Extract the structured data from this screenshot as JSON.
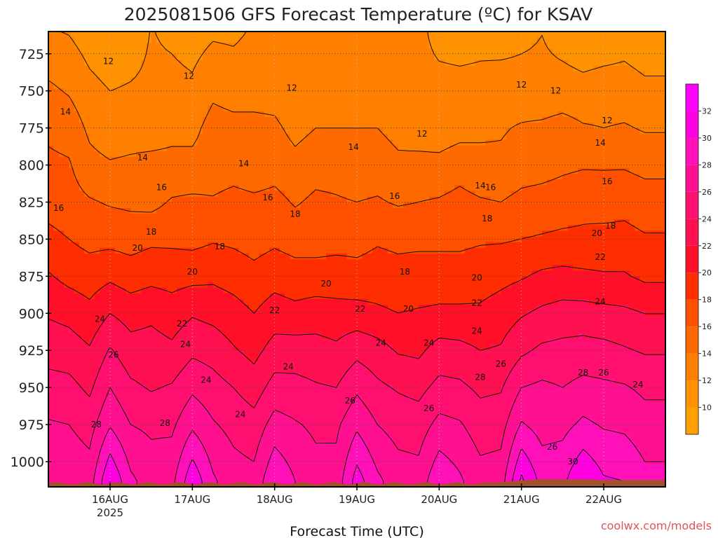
{
  "chart_data": {
    "type": "heatmap",
    "title": "2025081506 GFS Forecast Temperature (ºC) for KSAV",
    "xlabel": "Forecast Time (UTC)",
    "ylabel": "",
    "y_ticks": [
      725,
      750,
      775,
      800,
      825,
      850,
      875,
      900,
      925,
      950,
      975,
      1000
    ],
    "y_range_hpa": [
      710,
      1017
    ],
    "x_ticks": [
      {
        "label": "16AUG",
        "sublabel": "2025",
        "hours": 18
      },
      {
        "label": "17AUG",
        "sublabel": "",
        "hours": 42
      },
      {
        "label": "18AUG",
        "sublabel": "",
        "hours": 66
      },
      {
        "label": "19AUG",
        "sublabel": "",
        "hours": 90
      },
      {
        "label": "20AUG",
        "sublabel": "",
        "hours": 114
      },
      {
        "label": "21AUG",
        "sublabel": "",
        "hours": 138
      },
      {
        "label": "22AUG",
        "sublabel": "",
        "hours": 162
      }
    ],
    "x_range_hours": [
      0,
      180
    ],
    "colorbar_ticks": [
      10,
      12,
      14,
      16,
      18,
      20,
      22,
      24,
      26,
      28,
      30,
      32
    ],
    "colorbar_range": [
      8,
      34
    ],
    "contour_interval": 2,
    "grid": true,
    "terrain_color": "#a0522d",
    "temperature_levels": {
      "pressures": [
        725,
        750,
        775,
        800,
        825,
        850,
        875,
        900,
        925,
        950,
        975,
        1000
      ],
      "hours": [
        0,
        6,
        12,
        18,
        24,
        30,
        36,
        42,
        48,
        54,
        60,
        66,
        72,
        78,
        84,
        90,
        96,
        102,
        108,
        114,
        120,
        126,
        132,
        138,
        144,
        150,
        156,
        162,
        168,
        174,
        180
      ],
      "values": [
        [
          13.0,
          12.6,
          11.6,
          11.0,
          11.4,
          12.2,
          12.0,
          11.6,
          12.4,
          12.2,
          12.6,
          12.6,
          12.6,
          12.6,
          12.6,
          12.6,
          12.6,
          12.6,
          12.6,
          11.8,
          11.6,
          11.8,
          11.8,
          12.0,
          12.2,
          11.8,
          11.4,
          11.6,
          11.8,
          11.4,
          11.4
        ],
        [
          14.4,
          13.8,
          12.6,
          12.0,
          12.2,
          12.4,
          12.6,
          12.4,
          13.6,
          13.2,
          13.2,
          13.2,
          12.4,
          12.6,
          12.6,
          12.4,
          12.6,
          12.2,
          12.6,
          12.8,
          12.8,
          12.8,
          13.0,
          12.8,
          12.6,
          12.8,
          12.6,
          12.8,
          12.8,
          12.4,
          12.4
        ],
        [
          15.6,
          15.2,
          13.6,
          12.8,
          13.0,
          13.0,
          13.4,
          13.4,
          14.8,
          14.6,
          14.6,
          14.4,
          13.4,
          14.0,
          14.0,
          14.0,
          14.0,
          13.4,
          13.0,
          12.8,
          13.2,
          13.6,
          13.8,
          14.2,
          14.4,
          14.8,
          14.2,
          14.0,
          14.2,
          13.8,
          13.8
        ],
        [
          16.4,
          16.2,
          14.6,
          14.2,
          14.4,
          14.6,
          14.6,
          14.6,
          15.0,
          15.2,
          14.8,
          15.2,
          14.6,
          15.2,
          15.2,
          14.8,
          15.0,
          14.4,
          14.6,
          14.6,
          15.2,
          14.6,
          14.4,
          15.0,
          15.2,
          15.6,
          15.8,
          15.8,
          15.8,
          15.4,
          15.4
        ],
        [
          17.2,
          16.8,
          16.2,
          15.8,
          15.6,
          15.4,
          16.2,
          16.4,
          16.2,
          16.6,
          16.4,
          16.6,
          15.8,
          16.4,
          16.2,
          16.0,
          16.2,
          15.8,
          16.0,
          16.2,
          16.6,
          16.2,
          16.0,
          16.6,
          16.8,
          17.0,
          17.4,
          17.2,
          17.4,
          17.0,
          17.0
        ],
        [
          18.6,
          18.0,
          17.4,
          17.4,
          17.2,
          17.6,
          17.6,
          17.4,
          17.8,
          17.6,
          17.2,
          17.6,
          17.2,
          17.2,
          17.4,
          17.4,
          17.8,
          17.6,
          17.6,
          17.6,
          17.6,
          17.8,
          17.8,
          18.0,
          18.2,
          18.4,
          18.4,
          18.6,
          18.6,
          18.2,
          18.2
        ],
        [
          20.2,
          19.4,
          19.0,
          19.6,
          19.0,
          19.4,
          19.2,
          19.4,
          19.6,
          19.2,
          18.6,
          19.2,
          18.8,
          18.8,
          18.8,
          18.6,
          18.8,
          18.6,
          18.8,
          18.8,
          18.8,
          19.0,
          19.4,
          19.8,
          20.4,
          20.6,
          20.4,
          20.2,
          20.2,
          19.6,
          19.6
        ],
        [
          21.8,
          21.4,
          20.6,
          22.0,
          21.2,
          21.6,
          21.0,
          21.8,
          21.4,
          20.8,
          20.0,
          21.0,
          20.6,
          21.0,
          20.8,
          20.8,
          20.4,
          20.0,
          20.2,
          20.4,
          20.4,
          20.4,
          21.0,
          21.8,
          22.4,
          22.8,
          22.8,
          22.6,
          22.4,
          22.0,
          22.0
        ],
        [
          23.2,
          23.0,
          22.2,
          24.2,
          22.8,
          22.8,
          22.4,
          23.6,
          23.2,
          22.2,
          21.4,
          22.8,
          23.0,
          22.8,
          22.4,
          23.4,
          22.8,
          21.8,
          21.6,
          22.8,
          22.6,
          22.0,
          22.2,
          23.6,
          24.4,
          24.6,
          24.8,
          24.6,
          24.2,
          23.8,
          23.8
        ],
        [
          24.8,
          24.6,
          23.6,
          26.0,
          24.4,
          23.8,
          24.2,
          25.6,
          24.8,
          24.0,
          23.0,
          24.8,
          24.6,
          24.2,
          24.0,
          25.6,
          24.4,
          23.8,
          23.4,
          24.6,
          24.4,
          23.6,
          23.8,
          26.0,
          26.4,
          26.0,
          26.6,
          26.4,
          26.2,
          25.6,
          25.6
        ],
        [
          26.2,
          26.0,
          25.2,
          27.8,
          26.0,
          25.6,
          25.6,
          27.6,
          26.2,
          25.4,
          24.8,
          26.8,
          26.2,
          25.6,
          25.6,
          27.6,
          26.0,
          25.2,
          25.0,
          26.6,
          26.2,
          25.0,
          25.2,
          28.2,
          27.2,
          27.4,
          28.4,
          27.8,
          27.6,
          26.8,
          26.8
        ],
        [
          27.2,
          27.0,
          26.4,
          30.6,
          27.6,
          26.6,
          26.8,
          30.2,
          27.6,
          26.4,
          26.0,
          28.8,
          27.4,
          26.4,
          26.4,
          29.8,
          27.6,
          26.4,
          26.2,
          28.6,
          27.6,
          26.2,
          26.4,
          31.0,
          28.6,
          28.8,
          30.8,
          29.4,
          29.2,
          28.0,
          28.0
        ]
      ]
    },
    "contour_labels": [
      {
        "text": "12",
        "hours": 17.5,
        "hpa": 730
      },
      {
        "text": "12",
        "hours": 41,
        "hpa": 740
      },
      {
        "text": "12",
        "hours": 71,
        "hpa": 748
      },
      {
        "text": "12",
        "hours": 109,
        "hpa": 779
      },
      {
        "text": "12",
        "hours": 138,
        "hpa": 746
      },
      {
        "text": "12",
        "hours": 148,
        "hpa": 750
      },
      {
        "text": "12",
        "hours": 163,
        "hpa": 770
      },
      {
        "text": "14",
        "hours": 5,
        "hpa": 764
      },
      {
        "text": "14",
        "hours": 27.5,
        "hpa": 795
      },
      {
        "text": "14",
        "hours": 57,
        "hpa": 799
      },
      {
        "text": "14",
        "hours": 89,
        "hpa": 788
      },
      {
        "text": "14",
        "hours": 126,
        "hpa": 814
      },
      {
        "text": "14",
        "hours": 161,
        "hpa": 785
      },
      {
        "text": "16",
        "hours": 3,
        "hpa": 829
      },
      {
        "text": "16",
        "hours": 33,
        "hpa": 815
      },
      {
        "text": "16",
        "hours": 64,
        "hpa": 822
      },
      {
        "text": "16",
        "hours": 101,
        "hpa": 821
      },
      {
        "text": "16",
        "hours": 129,
        "hpa": 815
      },
      {
        "text": "16",
        "hours": 163,
        "hpa": 811
      },
      {
        "text": "18",
        "hours": 30,
        "hpa": 845
      },
      {
        "text": "18",
        "hours": 50,
        "hpa": 855
      },
      {
        "text": "18",
        "hours": 72,
        "hpa": 833
      },
      {
        "text": "18",
        "hours": 104,
        "hpa": 872
      },
      {
        "text": "18",
        "hours": 128,
        "hpa": 836
      },
      {
        "text": "18",
        "hours": 164,
        "hpa": 841
      },
      {
        "text": "20",
        "hours": 26,
        "hpa": 856
      },
      {
        "text": "20",
        "hours": 42,
        "hpa": 872
      },
      {
        "text": "20",
        "hours": 81,
        "hpa": 880
      },
      {
        "text": "20",
        "hours": 105,
        "hpa": 897
      },
      {
        "text": "20",
        "hours": 125,
        "hpa": 876
      },
      {
        "text": "20",
        "hours": 160,
        "hpa": 846
      },
      {
        "text": "22",
        "hours": 39,
        "hpa": 907
      },
      {
        "text": "22",
        "hours": 66,
        "hpa": 898
      },
      {
        "text": "22",
        "hours": 91,
        "hpa": 897
      },
      {
        "text": "22",
        "hours": 125,
        "hpa": 893
      },
      {
        "text": "22",
        "hours": 161,
        "hpa": 862
      },
      {
        "text": "24",
        "hours": 15,
        "hpa": 904
      },
      {
        "text": "24",
        "hours": 40,
        "hpa": 921
      },
      {
        "text": "24",
        "hours": 46,
        "hpa": 945
      },
      {
        "text": "24",
        "hours": 56,
        "hpa": 968
      },
      {
        "text": "24",
        "hours": 70,
        "hpa": 936
      },
      {
        "text": "24",
        "hours": 97,
        "hpa": 920
      },
      {
        "text": "24",
        "hours": 111,
        "hpa": 920
      },
      {
        "text": "24",
        "hours": 125,
        "hpa": 912
      },
      {
        "text": "24",
        "hours": 161,
        "hpa": 892
      },
      {
        "text": "24",
        "hours": 172,
        "hpa": 948
      },
      {
        "text": "26",
        "hours": 19,
        "hpa": 928
      },
      {
        "text": "26",
        "hours": 88,
        "hpa": 959
      },
      {
        "text": "26",
        "hours": 111,
        "hpa": 964
      },
      {
        "text": "26",
        "hours": 132,
        "hpa": 934
      },
      {
        "text": "26",
        "hours": 147,
        "hpa": 990
      },
      {
        "text": "26",
        "hours": 162,
        "hpa": 940
      },
      {
        "text": "28",
        "hours": 14,
        "hpa": 975
      },
      {
        "text": "28",
        "hours": 34,
        "hpa": 974
      },
      {
        "text": "28",
        "hours": 126,
        "hpa": 943
      },
      {
        "text": "28",
        "hours": 156,
        "hpa": 940
      },
      {
        "text": "30",
        "hours": 153,
        "hpa": 1000
      }
    ]
  },
  "credit": "coolwx.com/models"
}
